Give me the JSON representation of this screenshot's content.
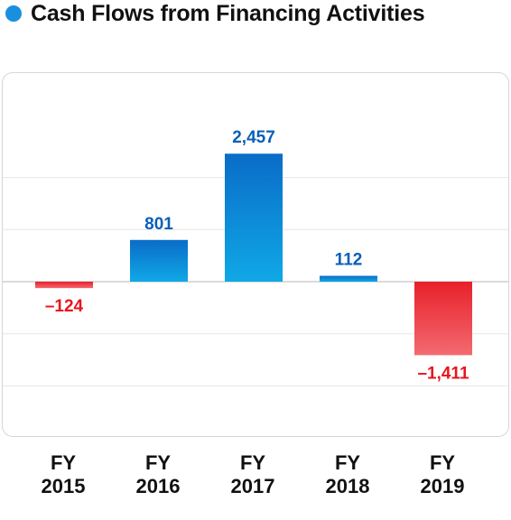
{
  "title": "Cash Flows from Financing Activities",
  "colors": {
    "title_dot": "#1a8fe0",
    "positive_top": "#0a6cc8",
    "positive_bottom": "#10a8e6",
    "positive_label": "#0a5fb8",
    "negative_top": "#e8202a",
    "negative_bottom": "#f36a70",
    "negative_label": "#e8141e",
    "grid": "#e6e6e6"
  },
  "chart_data": {
    "type": "bar",
    "title": "Cash Flows from Financing Activities",
    "categories": [
      "FY 2015",
      "FY 2016",
      "FY 2017",
      "FY 2018",
      "FY 2019"
    ],
    "category_lines": [
      [
        "FY",
        "2015"
      ],
      [
        "FY",
        "2016"
      ],
      [
        "FY",
        "2017"
      ],
      [
        "FY",
        "2018"
      ],
      [
        "FY",
        "2019"
      ]
    ],
    "values": [
      -124,
      801,
      2457,
      112,
      -1411
    ],
    "value_labels": [
      "–124",
      "801",
      "2,457",
      "112",
      "–1,411"
    ],
    "ylim": [
      -2000,
      3000
    ],
    "grid_step": 1000,
    "grid": true,
    "legend": "none"
  }
}
